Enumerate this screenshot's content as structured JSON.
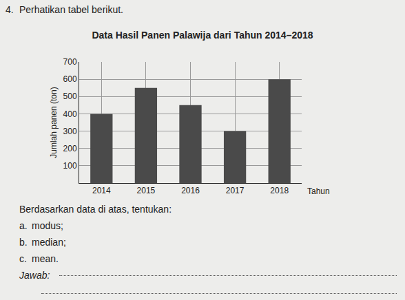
{
  "page": {
    "number": "4.",
    "intro": "Perhatikan tabel berikut.",
    "prompt": "Berdasarkan data di atas, tentukan:",
    "items": [
      {
        "label": "a.",
        "text": "modus;"
      },
      {
        "label": "b.",
        "text": "median;"
      },
      {
        "label": "c.",
        "text": "mean."
      }
    ],
    "answer_label": "Jawab:"
  },
  "chart_data": {
    "type": "bar",
    "title": "Data Hasil Panen Palawija dari Tahun 2014–2018",
    "x_label": "Tahun",
    "y_label": "Jumlah panen (ton)",
    "categories": [
      "2014",
      "2015",
      "2016",
      "2017",
      "2018"
    ],
    "values": [
      400,
      550,
      450,
      300,
      600
    ],
    "color": "#4a4a4a",
    "ylim": [
      0,
      700
    ],
    "yticks": [
      100,
      200,
      300,
      400,
      500,
      600,
      700
    ],
    "grid": true
  }
}
